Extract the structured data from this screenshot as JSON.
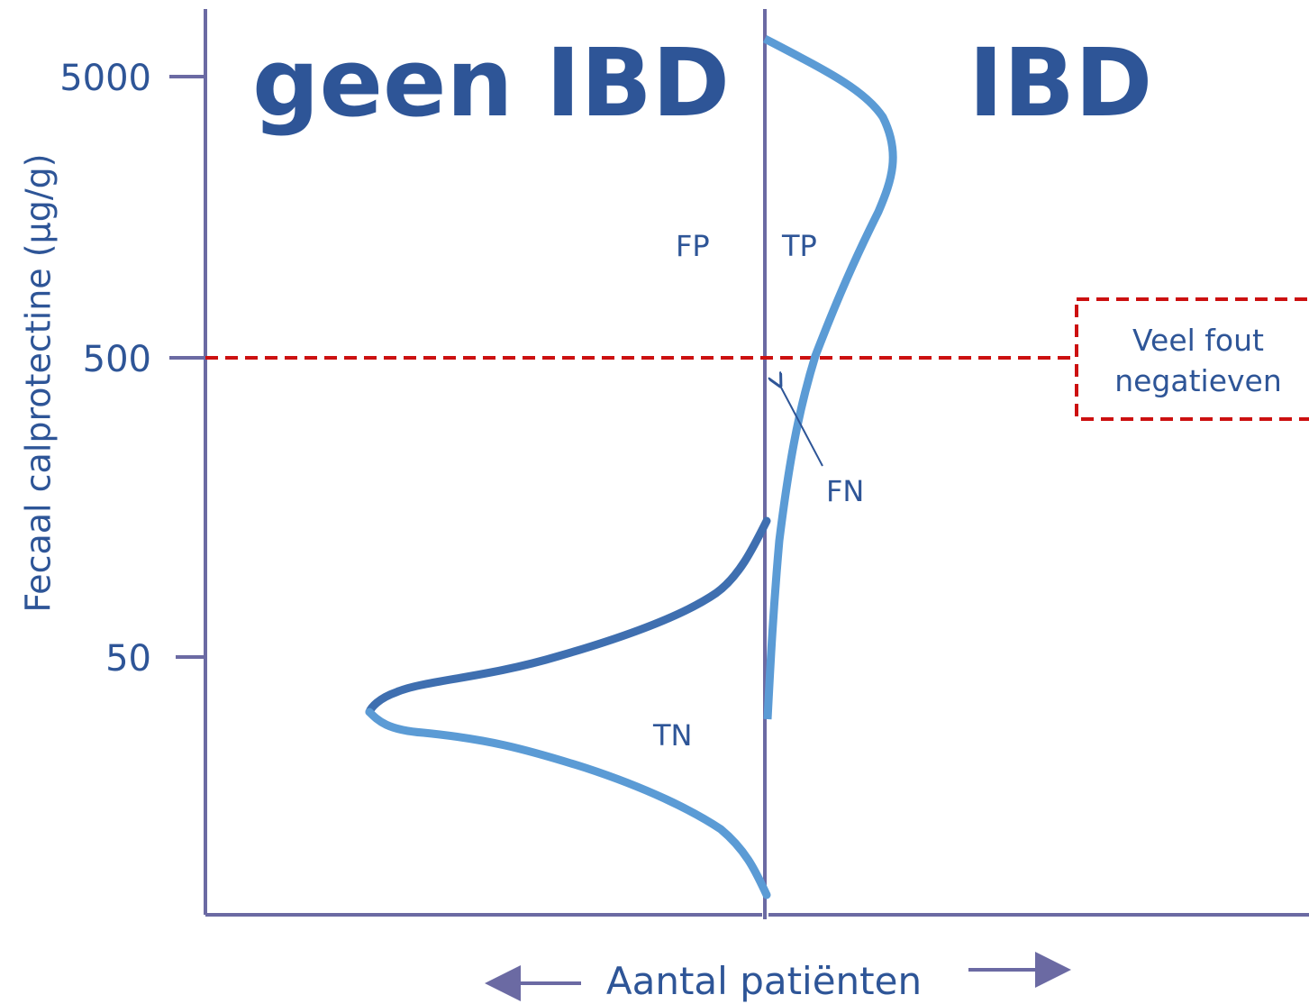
{
  "y_axis": {
    "label": "Fecaal calprotectine (µg/g)",
    "ticks": [
      "5000",
      "500",
      "50"
    ]
  },
  "regions": [
    "geen IBD",
    "IBD"
  ],
  "labels": {
    "fp": "FP",
    "tp": "TP",
    "tn": "TN",
    "fn": "FN"
  },
  "annotation": [
    "Veel fout",
    "negatieven"
  ],
  "x_axis": {
    "label": "Aantal patiënten"
  }
}
